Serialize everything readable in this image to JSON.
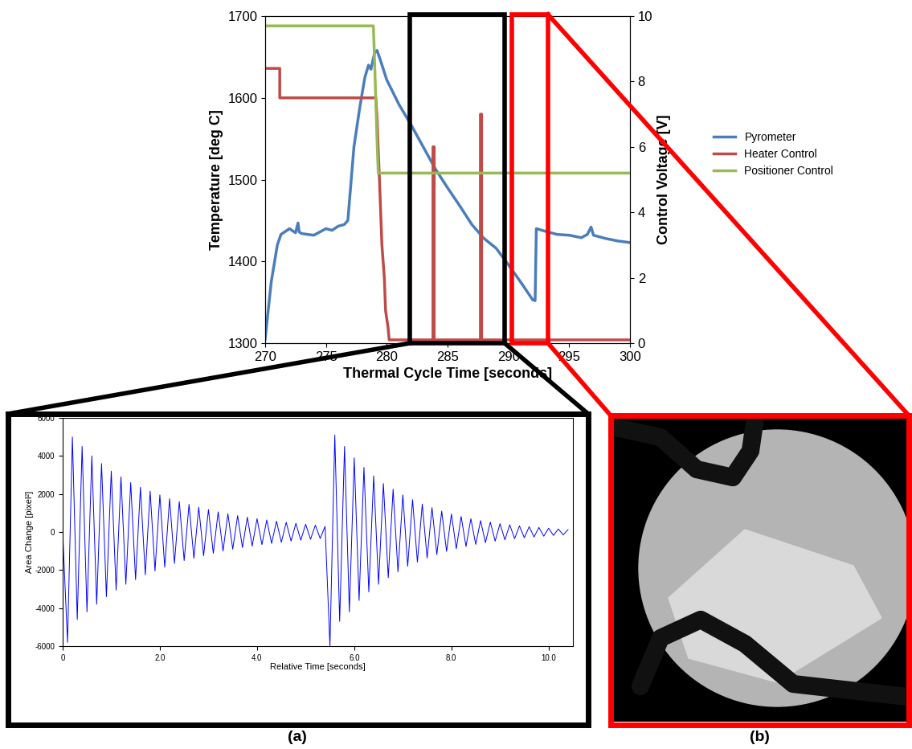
{
  "chart_data": [
    {
      "type": "line",
      "xlabel": "Thermal Cycle Time [seconds]",
      "ylabel": "Temperature [deg C]",
      "y2label": "Control Voltage [V]",
      "xlim": [
        270,
        300
      ],
      "xticks": [
        270,
        275,
        280,
        285,
        290,
        295,
        300
      ],
      "ylim": [
        1300,
        1700
      ],
      "yticks": [
        1300,
        1400,
        1500,
        1600,
        1700
      ],
      "y2lim": [
        0,
        10
      ],
      "y2ticks": [
        0,
        2,
        4,
        6,
        8,
        10
      ],
      "grid": false,
      "legend": "right",
      "series": [
        {
          "name": "Pyrometer",
          "color": "#4a7ebb",
          "x": [
            270,
            270.5,
            271,
            271.3,
            272,
            272.5,
            272.7,
            272.8,
            273,
            274,
            275,
            275.5,
            276,
            276.5,
            276.8,
            277.3,
            277.8,
            278.2,
            278.5,
            278.7,
            279,
            279.2,
            279.5,
            280,
            281,
            282,
            283,
            284,
            285,
            286,
            287,
            288,
            289,
            290,
            291,
            292,
            292.2,
            292.3,
            293,
            294,
            295,
            296,
            296.5,
            296.8,
            297,
            298,
            299,
            300
          ],
          "values": [
            1305,
            1375,
            1420,
            1433,
            1440,
            1435,
            1447,
            1436,
            1434,
            1432,
            1440,
            1438,
            1443,
            1445,
            1450,
            1540,
            1590,
            1625,
            1640,
            1635,
            1655,
            1658,
            1645,
            1622,
            1592,
            1567,
            1540,
            1513,
            1490,
            1468,
            1445,
            1428,
            1416,
            1396,
            1375,
            1353,
            1352,
            1440,
            1437,
            1433,
            1432,
            1429,
            1433,
            1442,
            1432,
            1428,
            1425,
            1423
          ]
        },
        {
          "name": "Heater Control",
          "color": "#be4b48",
          "axis": "y2",
          "x": [
            270,
            271.2,
            271.2,
            279.1,
            279.2,
            279.3,
            279.4,
            279.5,
            279.6,
            279.8,
            279.9,
            280.1,
            280.2,
            283.8,
            283.8,
            283.9,
            283.9,
            287.7,
            287.7,
            287.8,
            287.8,
            300
          ],
          "values": [
            8.4,
            8.4,
            7.5,
            7.5,
            6.9,
            5.9,
            5.0,
            4.0,
            3.0,
            2.0,
            1.0,
            0.5,
            0.1,
            0.1,
            6.0,
            6.0,
            0.1,
            0.1,
            7.0,
            7.0,
            0.1,
            0.1
          ]
        },
        {
          "name": "Positioner Control",
          "color": "#98b954",
          "axis": "y2",
          "x": [
            270,
            278.9,
            279.0,
            279.1,
            279.2,
            279.3,
            300
          ],
          "values": [
            9.7,
            9.7,
            8.6,
            7.4,
            6.2,
            5.2,
            5.2
          ]
        }
      ]
    },
    {
      "type": "line",
      "annotations": [
        "(a)"
      ],
      "xlabel": "Relative Time [seconds]",
      "ylabel": "Area Change [pixel²]",
      "xlim": [
        0,
        10.5
      ],
      "xticks": [
        0,
        {
          "value": 2,
          "label": "2.0"
        },
        {
          "value": 4,
          "label": "4.0"
        },
        {
          "value": 6,
          "label": "6.0"
        },
        {
          "value": 8,
          "label": "8.0"
        },
        {
          "value": 10,
          "label": "10.0"
        }
      ],
      "ylim": [
        -6000,
        6000
      ],
      "yticks": [
        -6000,
        -4000,
        -2000,
        0,
        2000,
        4000,
        6000
      ],
      "grid": false,
      "series": [
        {
          "color": "#0000ff",
          "x": [
            0.0,
            0.1,
            0.2,
            0.3,
            0.4,
            0.5,
            0.6,
            0.7,
            0.8,
            0.9,
            1.0,
            1.1,
            1.2,
            1.3,
            1.4,
            1.5,
            1.6,
            1.7,
            1.8,
            1.9,
            2.0,
            2.1,
            2.2,
            2.3,
            2.4,
            2.5,
            2.6,
            2.7,
            2.8,
            2.9,
            3.0,
            3.1,
            3.2,
            3.3,
            3.4,
            3.5,
            3.6,
            3.7,
            3.8,
            3.9,
            4.0,
            4.1,
            4.2,
            4.3,
            4.4,
            4.5,
            4.6,
            4.7,
            4.8,
            4.9,
            5.0,
            5.1,
            5.2,
            5.3,
            5.4,
            5.5,
            5.6,
            5.7,
            5.8,
            5.9,
            6.0,
            6.1,
            6.2,
            6.3,
            6.4,
            6.5,
            6.6,
            6.7,
            6.8,
            6.9,
            7.0,
            7.1,
            7.2,
            7.3,
            7.4,
            7.5,
            7.6,
            7.7,
            7.8,
            7.9,
            8.0,
            8.1,
            8.2,
            8.3,
            8.4,
            8.5,
            8.6,
            8.7,
            8.8,
            8.9,
            9.0,
            9.1,
            9.2,
            9.3,
            9.4,
            9.5,
            9.6,
            9.7,
            9.8,
            9.9,
            10.0,
            10.1,
            10.2,
            10.3,
            10.4
          ],
          "values": [
            0,
            -5800,
            5000,
            -4600,
            4500,
            -4200,
            4000,
            -3800,
            3600,
            -3400,
            3200,
            -3050,
            2900,
            -2750,
            2600,
            -2500,
            2350,
            -2250,
            2150,
            -2050,
            1950,
            -1850,
            1750,
            -1650,
            1600,
            -1500,
            1450,
            -1380,
            1300,
            -1250,
            1180,
            -1120,
            1060,
            -1000,
            960,
            -900,
            860,
            -820,
            780,
            -740,
            700,
            -660,
            630,
            -600,
            570,
            -540,
            510,
            -480,
            460,
            -430,
            410,
            -380,
            360,
            -340,
            300,
            -6000,
            5100,
            -4700,
            4500,
            -4200,
            3900,
            -3600,
            3400,
            -3150,
            2950,
            -2750,
            2550,
            -2400,
            2250,
            -2100,
            1950,
            -1800,
            1700,
            -1580,
            1470,
            -1370,
            1280,
            -1190,
            1100,
            -1020,
            950,
            -880,
            820,
            -760,
            700,
            -650,
            600,
            -560,
            520,
            -480,
            440,
            -410,
            380,
            -350,
            320,
            -300,
            280,
            -260,
            240,
            -220,
            200,
            -180,
            160,
            -150,
            130
          ]
        }
      ]
    },
    {
      "type": "image",
      "annotations": [
        "(b)"
      ]
    }
  ]
}
